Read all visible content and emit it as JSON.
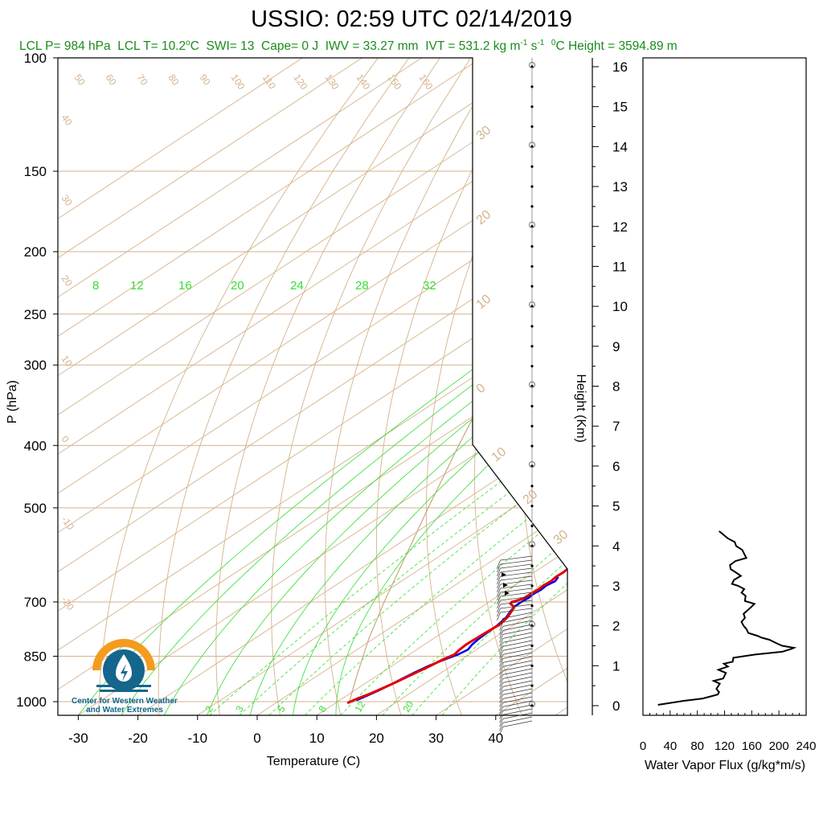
{
  "title": "USSIO: 02:59 UTC 02/14/2019",
  "stats": {
    "lcl_p": "LCL P= 984 hPa",
    "lcl_t": "LCL T= 10.2",
    "lcl_t_unit": "C",
    "swi": "SWI= 13",
    "cape": "Cape= 0 J",
    "iwv": "IWV = 33.27 mm",
    "ivt": "IVT = 531.2 kg m",
    "ivt_unit_1": "-1",
    "ivt_unit_2": " s",
    "ivt_unit_3": "-1",
    "freeze": "0",
    "freeze_rest": "C Height = 3594.89 m"
  },
  "logo": {
    "line1": "Center for Western Weather",
    "line2": "and Water Extremes"
  },
  "colors": {
    "temperature": "#e00000",
    "dewpoint": "#0000ee",
    "isotherm": "#d4b28c",
    "mixing_ratio": "#33e033",
    "moist_adiabat": "#33dd33",
    "label_green": "#1a8c1a",
    "logo_orange": "#f39c1f",
    "logo_blue": "#15668c"
  },
  "chart_data": [
    {
      "type": "line",
      "name": "skew-t",
      "xlabel": "Temperature (C)",
      "ylabel": "P (hPa)",
      "right_label": "Height (Km)",
      "x_ticks": [
        -30,
        -20,
        -10,
        0,
        10,
        20,
        30,
        40
      ],
      "p_ticks": [
        100,
        150,
        200,
        250,
        300,
        400,
        500,
        700,
        850,
        1000
      ],
      "height_ticks": [
        0,
        1,
        2,
        3,
        4,
        5,
        6,
        7,
        8,
        9,
        10,
        11,
        12,
        13,
        14,
        15,
        16
      ],
      "xlim": [
        -34,
        52
      ],
      "plim": [
        100,
        1050
      ],
      "mixing_ratio_labels_top": [
        "8",
        "12",
        "16",
        "20",
        "24",
        "28",
        "32"
      ],
      "mixing_ratio_labels_bottom": [
        "2",
        "3",
        "5",
        "8",
        "12",
        "20"
      ],
      "isotherm_labels_top": [
        "50",
        "60",
        "70",
        "80",
        "90",
        "100",
        "110",
        "120",
        "130",
        "140",
        "150",
        "160"
      ],
      "isotherm_labels_left": [
        "40",
        "30",
        "20",
        "10",
        "0",
        "-10",
        "-20"
      ],
      "isotherm_labels_right": [
        "30",
        "20",
        "10",
        "0",
        "-10",
        "-20",
        "-30"
      ],
      "temperature": [
        [
          1005,
          12.0
        ],
        [
          990,
          12.5
        ],
        [
          975,
          13.3
        ],
        [
          960,
          13.9
        ],
        [
          940,
          14.6
        ],
        [
          920,
          15.2
        ],
        [
          900,
          15.8
        ],
        [
          880,
          16.4
        ],
        [
          860,
          16.9
        ],
        [
          845,
          17.6
        ],
        [
          830,
          17.2
        ],
        [
          815,
          17.0
        ],
        [
          800,
          17.1
        ],
        [
          780,
          17.3
        ],
        [
          760,
          17.5
        ],
        [
          740,
          17.0
        ],
        [
          725,
          16.2
        ],
        [
          712,
          15.4
        ],
        [
          705,
          14.1
        ],
        [
          700,
          13.8
        ],
        [
          695,
          14.5
        ],
        [
          690,
          14.9
        ],
        [
          680,
          14.9
        ],
        [
          670,
          15.1
        ],
        [
          660,
          14.9
        ],
        [
          650,
          15.1
        ],
        [
          640,
          14.8
        ],
        [
          630,
          14.9
        ],
        [
          620,
          14.7
        ],
        [
          610,
          14.7
        ],
        [
          600,
          14.6
        ],
        [
          590,
          14.6
        ]
      ],
      "dewpoint": [
        [
          995,
          12.8
        ],
        [
          980,
          13.4
        ],
        [
          960,
          14.1
        ],
        [
          940,
          14.6
        ],
        [
          920,
          15.0
        ],
        [
          900,
          15.5
        ],
        [
          880,
          16.1
        ],
        [
          860,
          17.2
        ],
        [
          845,
          18.2
        ],
        [
          830,
          18.6
        ],
        [
          815,
          18.0
        ],
        [
          800,
          17.7
        ],
        [
          780,
          17.5
        ],
        [
          760,
          17.3
        ],
        [
          740,
          16.8
        ],
        [
          725,
          16.0
        ],
        [
          712,
          15.4
        ],
        [
          700,
          15.4
        ],
        [
          690,
          15.6
        ],
        [
          680,
          15.4
        ],
        [
          670,
          15.6
        ],
        [
          660,
          15.4
        ],
        [
          650,
          15.8
        ],
        [
          640,
          15.2
        ]
      ],
      "parcel_path": [
        [
          1000,
          12.0
        ],
        [
          950,
          9.0
        ],
        [
          900,
          5.9
        ],
        [
          850,
          2.7
        ],
        [
          800,
          -0.7
        ],
        [
          700,
          -7.6
        ],
        [
          600,
          -15.2
        ],
        [
          500,
          -24.2
        ],
        [
          400,
          -35.0
        ],
        [
          300,
          -48.5
        ],
        [
          250,
          -55.5
        ],
        [
          230,
          -58.0
        ],
        [
          200,
          -50.5
        ],
        [
          150,
          -37.0
        ],
        [
          120,
          -26.5
        ],
        [
          100,
          -19.5
        ]
      ]
    },
    {
      "type": "line",
      "name": "water-vapor-flux",
      "xlabel": "Water Vapor Flux (g/kg*m/s)",
      "x_ticks": [
        0,
        40,
        80,
        120,
        160,
        200,
        240
      ],
      "xlim": [
        0,
        240
      ],
      "ylim": [
        -0.1,
        16.3
      ],
      "points": [
        [
          22,
          0.02
        ],
        [
          60,
          0.12
        ],
        [
          88,
          0.18
        ],
        [
          110,
          0.28
        ],
        [
          112,
          0.34
        ],
        [
          108,
          0.42
        ],
        [
          113,
          0.55
        ],
        [
          104,
          0.62
        ],
        [
          118,
          0.68
        ],
        [
          122,
          0.82
        ],
        [
          111,
          0.9
        ],
        [
          125,
          0.98
        ],
        [
          119,
          1.05
        ],
        [
          132,
          1.1
        ],
        [
          133,
          1.2
        ],
        [
          165,
          1.28
        ],
        [
          205,
          1.35
        ],
        [
          218,
          1.42
        ],
        [
          222,
          1.45
        ],
        [
          205,
          1.5
        ],
        [
          198,
          1.55
        ],
        [
          186,
          1.65
        ],
        [
          175,
          1.7
        ],
        [
          168,
          1.75
        ],
        [
          155,
          1.82
        ],
        [
          152,
          1.92
        ],
        [
          148,
          2.0
        ],
        [
          145,
          2.1
        ],
        [
          150,
          2.2
        ],
        [
          148,
          2.3
        ],
        [
          158,
          2.45
        ],
        [
          164,
          2.55
        ],
        [
          150,
          2.62
        ],
        [
          151,
          2.75
        ],
        [
          145,
          2.83
        ],
        [
          149,
          2.92
        ],
        [
          140,
          3.0
        ],
        [
          131,
          3.05
        ],
        [
          134,
          3.15
        ],
        [
          144,
          3.25
        ],
        [
          138,
          3.32
        ],
        [
          129,
          3.42
        ],
        [
          128,
          3.52
        ],
        [
          136,
          3.62
        ],
        [
          152,
          3.7
        ],
        [
          149,
          3.8
        ],
        [
          146,
          3.9
        ],
        [
          137,
          4.0
        ],
        [
          135,
          4.1
        ],
        [
          129,
          4.15
        ],
        [
          124,
          4.2
        ],
        [
          117,
          4.3
        ],
        [
          112,
          4.37
        ]
      ]
    }
  ]
}
